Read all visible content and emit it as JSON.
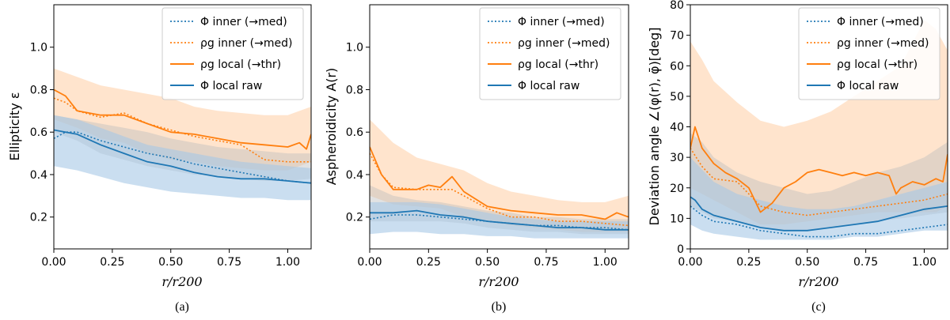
{
  "colors": {
    "blue": "#1f77b4",
    "orange": "#ff7f0e",
    "band_blue": "#a6c8e6",
    "band_orange": "#ffd2ac",
    "band_gray": "#bfbfbf"
  },
  "legend_entries": [
    {
      "key": "phi_inner",
      "label": "Φ inner (→med)",
      "color": "#1f77b4",
      "style": "dotted"
    },
    {
      "key": "rho_inner",
      "label": "ρg inner (→med)",
      "color": "#ff7f0e",
      "style": "dotted"
    },
    {
      "key": "rho_local",
      "label": "ρg local (→thr)",
      "color": "#ff7f0e",
      "style": "solid"
    },
    {
      "key": "phi_local",
      "label": "Φ local raw",
      "color": "#1f77b4",
      "style": "solid"
    }
  ],
  "chart_data": [
    {
      "type": "line",
      "caption": "(a)",
      "xlabel": "r/r200",
      "ylabel": "Ellipticity ε",
      "xlim": [
        0,
        1.1
      ],
      "ylim": [
        0.05,
        1.2
      ],
      "xticks": [
        0.0,
        0.25,
        0.5,
        0.75,
        1.0
      ],
      "xtick_labels": [
        "0.00",
        "0.25",
        "0.50",
        "0.75",
        "1.00"
      ],
      "yticks": [
        0.2,
        0.4,
        0.6,
        0.8,
        1.0
      ],
      "ytick_labels": [
        "0.2",
        "0.4",
        "0.6",
        "0.8",
        "1.0"
      ],
      "legend_position": "top-right",
      "series": [
        {
          "key": "phi_inner",
          "x": [
            0,
            0.05,
            0.1,
            0.2,
            0.3,
            0.4,
            0.5,
            0.6,
            0.7,
            0.8,
            0.9,
            1.0,
            1.1
          ],
          "y": [
            0.57,
            0.6,
            0.6,
            0.56,
            0.53,
            0.5,
            0.48,
            0.45,
            0.43,
            0.41,
            0.39,
            0.37,
            0.36
          ]
        },
        {
          "key": "rho_inner",
          "x": [
            0,
            0.05,
            0.1,
            0.2,
            0.3,
            0.4,
            0.5,
            0.6,
            0.7,
            0.8,
            0.9,
            1.0,
            1.1
          ],
          "y": [
            0.76,
            0.74,
            0.7,
            0.67,
            0.69,
            0.64,
            0.61,
            0.58,
            0.56,
            0.54,
            0.47,
            0.46,
            0.46
          ]
        },
        {
          "key": "rho_local",
          "x": [
            0,
            0.05,
            0.1,
            0.2,
            0.3,
            0.4,
            0.5,
            0.6,
            0.7,
            0.8,
            0.9,
            1.0,
            1.05,
            1.08,
            1.1
          ],
          "y": [
            0.8,
            0.77,
            0.7,
            0.68,
            0.68,
            0.64,
            0.6,
            0.59,
            0.57,
            0.55,
            0.54,
            0.53,
            0.55,
            0.52,
            0.59
          ]
        },
        {
          "key": "phi_local",
          "x": [
            0,
            0.05,
            0.1,
            0.2,
            0.3,
            0.4,
            0.5,
            0.6,
            0.7,
            0.8,
            0.9,
            1.0,
            1.1
          ],
          "y": [
            0.61,
            0.6,
            0.59,
            0.54,
            0.5,
            0.46,
            0.44,
            0.41,
            0.39,
            0.38,
            0.38,
            0.37,
            0.36
          ]
        }
      ],
      "bands": [
        {
          "color_key": "band_orange",
          "x": [
            0,
            0.1,
            0.2,
            0.3,
            0.4,
            0.5,
            0.6,
            0.7,
            0.8,
            0.9,
            1.0,
            1.1
          ],
          "lower": [
            0.66,
            0.62,
            0.57,
            0.55,
            0.5,
            0.47,
            0.46,
            0.44,
            0.43,
            0.42,
            0.42,
            0.46
          ],
          "upper": [
            0.9,
            0.86,
            0.82,
            0.8,
            0.78,
            0.76,
            0.72,
            0.7,
            0.69,
            0.68,
            0.68,
            0.72
          ]
        },
        {
          "color_key": "band_gray",
          "x": [
            0,
            0.1,
            0.2,
            0.3,
            0.4,
            0.5,
            0.6,
            0.7,
            0.8,
            0.9,
            1.0,
            1.1
          ],
          "lower": [
            0.6,
            0.56,
            0.5,
            0.47,
            0.44,
            0.42,
            0.4,
            0.39,
            0.38,
            0.37,
            0.37,
            0.38
          ],
          "upper": [
            0.68,
            0.66,
            0.64,
            0.62,
            0.6,
            0.57,
            0.55,
            0.53,
            0.52,
            0.51,
            0.5,
            0.5
          ]
        },
        {
          "color_key": "band_blue",
          "x": [
            0,
            0.1,
            0.2,
            0.3,
            0.4,
            0.5,
            0.6,
            0.7,
            0.8,
            0.9,
            1.0,
            1.1
          ],
          "lower": [
            0.44,
            0.42,
            0.39,
            0.36,
            0.34,
            0.32,
            0.31,
            0.3,
            0.29,
            0.29,
            0.28,
            0.28
          ],
          "upper": [
            0.68,
            0.66,
            0.62,
            0.58,
            0.54,
            0.52,
            0.5,
            0.48,
            0.46,
            0.45,
            0.44,
            0.43
          ]
        }
      ]
    },
    {
      "type": "line",
      "caption": "(b)",
      "xlabel": "r/r200",
      "ylabel": "Aspheroidicity A(r)",
      "xlim": [
        0,
        1.1
      ],
      "ylim": [
        0.05,
        1.2
      ],
      "xticks": [
        0.0,
        0.25,
        0.5,
        0.75,
        1.0
      ],
      "xtick_labels": [
        "0.00",
        "0.25",
        "0.50",
        "0.75",
        "1.00"
      ],
      "yticks": [
        0.2,
        0.4,
        0.6,
        0.8,
        1.0
      ],
      "ytick_labels": [
        "0.2",
        "0.4",
        "0.6",
        "0.8",
        "1.0"
      ],
      "legend_position": "top-right",
      "series": [
        {
          "key": "phi_inner",
          "x": [
            0,
            0.05,
            0.1,
            0.2,
            0.3,
            0.4,
            0.5,
            0.6,
            0.7,
            0.8,
            0.9,
            1.0,
            1.1
          ],
          "y": [
            0.19,
            0.2,
            0.21,
            0.21,
            0.2,
            0.19,
            0.18,
            0.17,
            0.16,
            0.16,
            0.15,
            0.15,
            0.14
          ]
        },
        {
          "key": "rho_inner",
          "x": [
            0,
            0.05,
            0.1,
            0.2,
            0.3,
            0.35,
            0.4,
            0.5,
            0.6,
            0.7,
            0.8,
            0.9,
            1.0,
            1.1
          ],
          "y": [
            0.5,
            0.4,
            0.34,
            0.33,
            0.33,
            0.33,
            0.3,
            0.24,
            0.2,
            0.2,
            0.18,
            0.18,
            0.17,
            0.16
          ]
        },
        {
          "key": "rho_local",
          "x": [
            0,
            0.05,
            0.1,
            0.2,
            0.25,
            0.3,
            0.35,
            0.4,
            0.5,
            0.6,
            0.7,
            0.8,
            0.9,
            1.0,
            1.05,
            1.1
          ],
          "y": [
            0.53,
            0.4,
            0.33,
            0.33,
            0.35,
            0.34,
            0.39,
            0.32,
            0.25,
            0.23,
            0.22,
            0.21,
            0.21,
            0.19,
            0.22,
            0.2
          ]
        },
        {
          "key": "phi_local",
          "x": [
            0,
            0.05,
            0.1,
            0.2,
            0.3,
            0.4,
            0.5,
            0.6,
            0.7,
            0.8,
            0.9,
            1.0,
            1.1
          ],
          "y": [
            0.22,
            0.22,
            0.22,
            0.23,
            0.21,
            0.2,
            0.18,
            0.17,
            0.16,
            0.15,
            0.15,
            0.14,
            0.14
          ]
        }
      ],
      "bands": [
        {
          "color_key": "band_orange",
          "x": [
            0,
            0.1,
            0.2,
            0.3,
            0.4,
            0.5,
            0.6,
            0.7,
            0.8,
            0.9,
            1.0,
            1.1
          ],
          "lower": [
            0.3,
            0.26,
            0.25,
            0.24,
            0.2,
            0.18,
            0.16,
            0.15,
            0.14,
            0.13,
            0.13,
            0.13
          ],
          "upper": [
            0.66,
            0.55,
            0.48,
            0.45,
            0.42,
            0.36,
            0.32,
            0.3,
            0.28,
            0.27,
            0.27,
            0.3
          ]
        },
        {
          "color_key": "band_gray",
          "x": [
            0,
            0.1,
            0.2,
            0.3,
            0.4,
            0.5,
            0.6,
            0.7,
            0.8,
            0.9,
            1.0,
            1.1
          ],
          "lower": [
            0.18,
            0.18,
            0.18,
            0.18,
            0.17,
            0.15,
            0.14,
            0.13,
            0.13,
            0.12,
            0.12,
            0.12
          ],
          "upper": [
            0.35,
            0.3,
            0.28,
            0.27,
            0.25,
            0.23,
            0.22,
            0.2,
            0.2,
            0.19,
            0.19,
            0.19
          ]
        },
        {
          "color_key": "band_blue",
          "x": [
            0,
            0.1,
            0.2,
            0.3,
            0.4,
            0.5,
            0.6,
            0.7,
            0.8,
            0.9,
            1.0,
            1.1
          ],
          "lower": [
            0.12,
            0.13,
            0.13,
            0.12,
            0.12,
            0.11,
            0.11,
            0.1,
            0.1,
            0.1,
            0.1,
            0.1
          ],
          "upper": [
            0.27,
            0.27,
            0.27,
            0.26,
            0.24,
            0.22,
            0.2,
            0.19,
            0.18,
            0.18,
            0.18,
            0.18
          ]
        }
      ]
    },
    {
      "type": "line",
      "caption": "(c)",
      "xlabel": "r/r200",
      "ylabel": "Deviation angle ∠(φ(r), φ̄)[deg]",
      "xlim": [
        0,
        1.1
      ],
      "ylim": [
        0,
        80
      ],
      "xticks": [
        0.0,
        0.25,
        0.5,
        0.75,
        1.0
      ],
      "xtick_labels": [
        "0.00",
        "0.25",
        "0.50",
        "0.75",
        "1.00"
      ],
      "yticks": [
        0,
        10,
        20,
        30,
        40,
        50,
        60,
        70,
        80
      ],
      "ytick_labels": [
        "0",
        "10",
        "20",
        "30",
        "40",
        "50",
        "60",
        "70",
        "80"
      ],
      "legend_position": "top-right",
      "series": [
        {
          "key": "phi_inner",
          "x": [
            0,
            0.05,
            0.1,
            0.2,
            0.3,
            0.4,
            0.5,
            0.6,
            0.7,
            0.8,
            0.9,
            1.0,
            1.1
          ],
          "y": [
            14,
            11,
            9,
            8,
            6,
            5,
            4,
            4,
            5,
            5,
            6,
            7,
            8
          ]
        },
        {
          "key": "rho_inner",
          "x": [
            0,
            0.05,
            0.1,
            0.2,
            0.3,
            0.4,
            0.5,
            0.6,
            0.7,
            0.8,
            0.9,
            1.0,
            1.1
          ],
          "y": [
            33,
            27,
            23,
            22,
            14,
            12,
            11,
            12,
            13,
            14,
            15,
            16,
            18
          ]
        },
        {
          "key": "rho_local",
          "x": [
            0,
            0.02,
            0.05,
            0.1,
            0.15,
            0.2,
            0.25,
            0.3,
            0.35,
            0.4,
            0.45,
            0.5,
            0.55,
            0.6,
            0.65,
            0.7,
            0.75,
            0.8,
            0.85,
            0.88,
            0.9,
            0.95,
            1.0,
            1.05,
            1.08,
            1.1
          ],
          "y": [
            33,
            40,
            33,
            28,
            25,
            23,
            20,
            12,
            15,
            20,
            22,
            25,
            26,
            25,
            24,
            25,
            24,
            25,
            24,
            18,
            20,
            22,
            21,
            23,
            22,
            31
          ]
        },
        {
          "key": "phi_local",
          "x": [
            0,
            0.02,
            0.05,
            0.1,
            0.2,
            0.3,
            0.4,
            0.5,
            0.6,
            0.7,
            0.8,
            0.9,
            1.0,
            1.1
          ],
          "y": [
            17,
            16,
            13,
            11,
            9,
            7,
            6,
            6,
            7,
            8,
            9,
            11,
            13,
            14
          ]
        }
      ],
      "bands": [
        {
          "color_key": "band_orange",
          "x": [
            0,
            0.05,
            0.1,
            0.2,
            0.3,
            0.4,
            0.5,
            0.6,
            0.7,
            0.8,
            0.9,
            1.0,
            1.05,
            1.1
          ],
          "lower": [
            20,
            18,
            16,
            12,
            8,
            8,
            9,
            10,
            11,
            12,
            12,
            12,
            12,
            14
          ],
          "upper": [
            68,
            62,
            55,
            48,
            42,
            40,
            42,
            45,
            50,
            55,
            60,
            75,
            72,
            65
          ]
        },
        {
          "color_key": "band_gray",
          "x": [
            0,
            0.05,
            0.1,
            0.2,
            0.3,
            0.4,
            0.5,
            0.6,
            0.7,
            0.8,
            0.9,
            1.0,
            1.1
          ],
          "lower": [
            14,
            12,
            10,
            9,
            7,
            6,
            6,
            7,
            8,
            9,
            10,
            11,
            12
          ],
          "upper": [
            38,
            35,
            30,
            25,
            22,
            20,
            18,
            19,
            22,
            25,
            27,
            30,
            35
          ]
        },
        {
          "color_key": "band_blue",
          "x": [
            0,
            0.05,
            0.1,
            0.2,
            0.3,
            0.4,
            0.5,
            0.6,
            0.7,
            0.8,
            0.9,
            1.0,
            1.1
          ],
          "lower": [
            8,
            6,
            5,
            4,
            3,
            3,
            3,
            3,
            4,
            4,
            5,
            6,
            6
          ],
          "upper": [
            30,
            26,
            22,
            18,
            16,
            14,
            13,
            13,
            14,
            16,
            18,
            20,
            22
          ]
        }
      ]
    }
  ]
}
